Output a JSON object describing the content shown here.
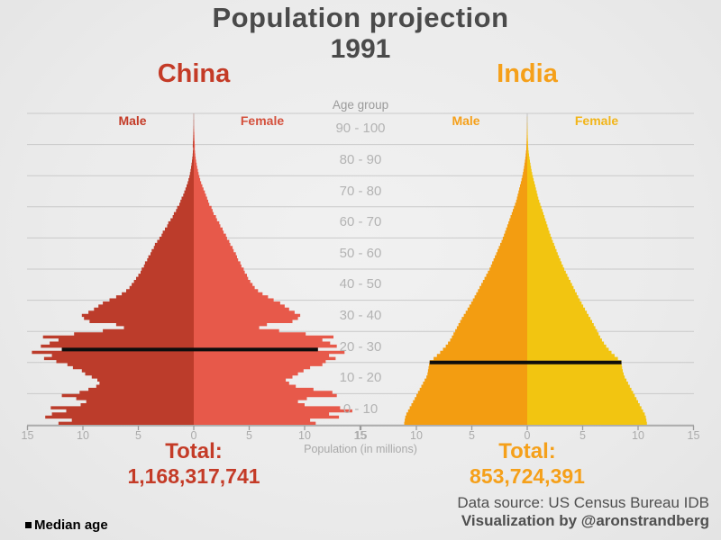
{
  "page": {
    "title_line1": "Population projection",
    "title_line2": "1991",
    "age_axis_label": "Age group",
    "x_axis_label": "Population (in millions)",
    "legend": {
      "median_label": "Median age"
    },
    "footer": {
      "source": "Data source: US Census Bureau IDB",
      "attribution": "Visualization by @aronstrandberg"
    }
  },
  "chart_data": {
    "type": "bar",
    "subtype": "population-pyramid-back-to-back",
    "year": "1991",
    "grid": true,
    "age_groups_top_to_bottom": [
      "90 - 100",
      "80 - 90",
      "70 - 80",
      "60 - 70",
      "50 - 60",
      "40 - 50",
      "30 - 40",
      "20 - 30",
      "10 - 20",
      "0 - 10"
    ],
    "x_ticks": [
      {
        "offset": -15,
        "label": "15"
      },
      {
        "offset": -10,
        "label": "10"
      },
      {
        "offset": -5,
        "label": "5"
      },
      {
        "offset": 0,
        "label": "0"
      },
      {
        "offset": 5,
        "label": "5"
      },
      {
        "offset": 10,
        "label": "10"
      },
      {
        "offset": 15,
        "label": "15"
      }
    ],
    "x_range_each_side_millions": 15,
    "unit": "millions of people per single year of age, per sex",
    "median_line_color": "#0d0d0d",
    "countries": [
      {
        "name": "China",
        "male_label": "Male",
        "female_label": "Female",
        "total_label": "Total:",
        "total_value": "1,168,317,741",
        "median_age": 24.4,
        "colors": {
          "male": "#bc3c2b",
          "female": "#e7594a",
          "accent": "#c43b27"
        },
        "male_by_single_age": [
          12.2,
          11.0,
          13.4,
          12.8,
          11.5,
          12.9,
          10.2,
          9.7,
          10.6,
          11.9,
          10.3,
          9.5,
          8.8,
          8.5,
          8.7,
          9.2,
          9.8,
          10.1,
          10.9,
          11.4,
          12.4,
          13.5,
          12.8,
          14.6,
          11.9,
          13.8,
          13.0,
          12.2,
          13.6,
          10.8,
          8.2,
          6.3,
          7.0,
          9.4,
          9.9,
          10.1,
          9.5,
          9.0,
          8.6,
          8.2,
          7.6,
          7.0,
          6.5,
          6.1,
          5.8,
          5.6,
          5.4,
          5.2,
          5.0,
          4.8,
          4.7,
          4.5,
          4.4,
          4.2,
          4.1,
          3.9,
          3.8,
          3.6,
          3.5,
          3.3,
          3.1,
          2.9,
          2.8,
          2.6,
          2.4,
          2.3,
          2.1,
          1.9,
          1.8,
          1.6,
          1.5,
          1.3,
          1.2,
          1.1,
          0.95,
          0.85,
          0.75,
          0.65,
          0.55,
          0.48,
          0.4,
          0.34,
          0.29,
          0.24,
          0.2,
          0.16,
          0.13,
          0.1,
          0.08,
          0.06,
          0.09,
          0.075,
          0.06,
          0.05,
          0.04,
          0.03,
          0.025,
          0.02,
          0.015,
          0.01,
          0.005
        ],
        "female_by_single_age": [
          11.0,
          10.5,
          13.1,
          12.2,
          14.3,
          13.2,
          10.0,
          9.4,
          10.2,
          12.9,
          12.5,
          10.8,
          9.2,
          8.6,
          8.3,
          8.9,
          9.4,
          9.9,
          10.5,
          11.6,
          11.9,
          12.8,
          12.2,
          13.6,
          11.2,
          12.9,
          12.3,
          11.6,
          12.6,
          10.1,
          7.7,
          5.9,
          6.6,
          8.9,
          9.4,
          9.6,
          9.1,
          8.6,
          8.2,
          7.8,
          7.2,
          6.7,
          6.2,
          5.8,
          5.5,
          5.3,
          5.1,
          4.9,
          4.8,
          4.6,
          4.5,
          4.3,
          4.2,
          4.0,
          3.9,
          3.8,
          3.6,
          3.5,
          3.3,
          3.2,
          3.0,
          2.9,
          2.7,
          2.6,
          2.4,
          2.3,
          2.1,
          2.0,
          1.8,
          1.7,
          1.6,
          1.4,
          1.3,
          1.2,
          1.1,
          1.0,
          0.88,
          0.77,
          0.67,
          0.58,
          0.5,
          0.43,
          0.37,
          0.31,
          0.26,
          0.21,
          0.17,
          0.14,
          0.11,
          0.09,
          0.1,
          0.08,
          0.065,
          0.055,
          0.045,
          0.035,
          0.028,
          0.02,
          0.015,
          0.01,
          0.005
        ]
      },
      {
        "name": "India",
        "male_label": "Male",
        "female_label": "Female",
        "total_label": "Total:",
        "total_value": "853,724,391",
        "median_age": 20.2,
        "colors": {
          "male": "#f39d11",
          "female": "#f2c511",
          "accent": "#f5a01a"
        },
        "male_by_single_age": [
          11.1,
          11.05,
          11.0,
          10.9,
          10.75,
          10.6,
          10.45,
          10.3,
          10.15,
          10.0,
          9.85,
          9.7,
          9.55,
          9.4,
          9.25,
          9.1,
          9.0,
          8.95,
          8.9,
          8.85,
          8.8,
          8.45,
          8.15,
          7.85,
          7.6,
          7.35,
          7.15,
          6.95,
          6.8,
          6.65,
          6.5,
          6.35,
          6.2,
          6.05,
          5.9,
          5.72,
          5.55,
          5.38,
          5.22,
          5.06,
          4.9,
          4.75,
          4.6,
          4.45,
          4.3,
          4.15,
          4.0,
          3.85,
          3.7,
          3.55,
          3.4,
          3.28,
          3.16,
          3.04,
          2.92,
          2.8,
          2.68,
          2.56,
          2.44,
          2.32,
          2.2,
          2.1,
          2.0,
          1.9,
          1.8,
          1.7,
          1.6,
          1.5,
          1.4,
          1.3,
          1.2,
          1.1,
          1.0,
          0.93,
          0.86,
          0.79,
          0.72,
          0.65,
          0.58,
          0.51,
          0.45,
          0.39,
          0.34,
          0.29,
          0.25,
          0.21,
          0.17,
          0.14,
          0.11,
          0.08,
          0.07,
          0.06,
          0.05,
          0.04,
          0.03,
          0.025,
          0.02,
          0.015,
          0.01,
          0.007,
          0.004
        ],
        "female_by_single_age": [
          10.8,
          10.75,
          10.7,
          10.6,
          10.45,
          10.3,
          10.15,
          10.0,
          9.85,
          9.7,
          9.55,
          9.4,
          9.25,
          9.1,
          8.95,
          8.8,
          8.7,
          8.62,
          8.56,
          8.52,
          8.5,
          8.18,
          7.88,
          7.6,
          7.35,
          7.12,
          6.92,
          6.74,
          6.58,
          6.44,
          6.3,
          6.15,
          6.0,
          5.85,
          5.7,
          5.53,
          5.37,
          5.21,
          5.05,
          4.9,
          4.75,
          4.6,
          4.46,
          4.32,
          4.18,
          4.04,
          3.9,
          3.76,
          3.62,
          3.48,
          3.34,
          3.22,
          3.1,
          2.98,
          2.86,
          2.75,
          2.64,
          2.53,
          2.42,
          2.31,
          2.2,
          2.1,
          2.0,
          1.91,
          1.82,
          1.73,
          1.64,
          1.55,
          1.46,
          1.37,
          1.28,
          1.18,
          1.08,
          1.0,
          0.93,
          0.86,
          0.79,
          0.72,
          0.65,
          0.58,
          0.51,
          0.45,
          0.39,
          0.34,
          0.29,
          0.24,
          0.2,
          0.16,
          0.13,
          0.1,
          0.08,
          0.07,
          0.06,
          0.05,
          0.04,
          0.03,
          0.022,
          0.016,
          0.01,
          0.006,
          0.003
        ]
      }
    ]
  }
}
